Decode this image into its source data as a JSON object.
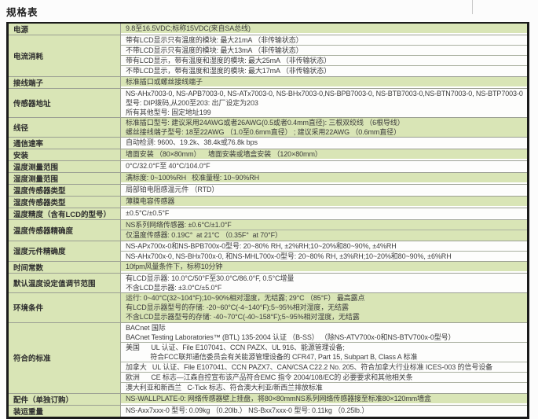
{
  "page": {
    "title": "规格表"
  },
  "colors": {
    "row_green": "#d9e5b6",
    "border_dark": "#1a1a1a",
    "border_gray": "#9b9f93"
  },
  "table": {
    "rows": [
      {
        "label": "电源",
        "shade": "green",
        "cells": [
          {
            "lines": [
              "9.8至16.5VDC;标称15VDC(来自SA总线)"
            ]
          }
        ]
      },
      {
        "label": "电流消耗",
        "shade": "white",
        "cells": [
          {
            "lines": [
              "带有LCD显示只有温度的模块: 最大21mA （非传输状态）"
            ]
          },
          {
            "lines": [
              "不带LCD显示只有温度的模块: 最大13mA （非传输状态）"
            ]
          },
          {
            "lines": [
              "带有LCD显示，带有温度和湿度的模块: 最大25mA （非传输状态）"
            ]
          },
          {
            "lines": [
              "不带LCD显示，带有温度和湿度的模块: 最大17mA （非传输状态）"
            ]
          }
        ]
      },
      {
        "label": "接线端子",
        "shade": "green",
        "cells": [
          {
            "lines": [
              "标准插口或螺丝接线端子"
            ]
          }
        ]
      },
      {
        "label": "传感器地址",
        "shade": "white",
        "cells": [
          {
            "lines": [
              "NS-AHx7003-0, NS-APB7003-0, NS-ATx7003-0, NS-BHx7003-0,NS-BPB7003-0, NS-BTB7003-0,NS-BTN7003-0, NS-BTP7003-0",
              "型号: DIP拨码,从200至203: 出厂设定为203",
              "所有其他型号: 固定地址199"
            ]
          }
        ]
      },
      {
        "label": "线径",
        "shade": "green",
        "cells": [
          {
            "lines": [
              "标准插口型号: 建议采用24AWG或者26AWG(0.5或者0.4mm直径): 三根双绞线 （6根导线）",
              "螺丝接线端子型号: 18至22AWG （1.0至0.6mm直径） ; 建议采用22AWG （0.6mm直径）"
            ]
          }
        ]
      },
      {
        "label": "通信速率",
        "shade": "white",
        "cells": [
          {
            "lines": [
              "自动检测: 9600、19.2k、38.4k或76.8k bps"
            ]
          }
        ]
      },
      {
        "label": "安装",
        "shade": "green",
        "cells": [
          {
            "lines": [
              "墙面安装 （80×80mm）    墙面安装或墙盒安装 （120×80mm）"
            ]
          }
        ]
      },
      {
        "label": "温度测量范围",
        "shade": "white",
        "cells": [
          {
            "lines": [
              "0°C/32.0°F至 40°C/104.0°F"
            ]
          }
        ]
      },
      {
        "label": "湿度测量范围",
        "shade": "green",
        "cells": [
          {
            "lines": [
              "满标度: 0~100%RH   校准量程: 10~90%RH"
            ]
          }
        ]
      },
      {
        "label": "温度传感器类型",
        "shade": "white",
        "cells": [
          {
            "lines": [
              "局部铂电阻感温元件 （RTD）"
            ]
          }
        ]
      },
      {
        "label": "湿度传感器类型",
        "shade": "green",
        "cells": [
          {
            "lines": [
              "薄膜电容传感器"
            ]
          }
        ]
      },
      {
        "label": "温度精度（含有LCD的型号）",
        "shade": "white",
        "cells": [
          {
            "lines": [
              "±0.5°C/±0.5°F"
            ]
          }
        ]
      },
      {
        "label": "温度传感器精确度",
        "shade": "green",
        "cells": [
          {
            "lines": [
              "NS系列网络传感器: ±0.6°C/±1.0°F"
            ]
          },
          {
            "lines": [
              "仅温度传感器: 0.19C°  at 21°C （0.35F°  at 70°F）"
            ]
          }
        ]
      },
      {
        "label": "湿度元件精确度",
        "shade": "white",
        "cells": [
          {
            "lines": [
              "NS-APx700x-0和NS-BPB700x-0型号: 20~80% RH, ±2%RH;10~20%和80~90%, ±4%RH"
            ]
          },
          {
            "lines": [
              "NS-AHx700x-0, NS-BHx700x-0, 和NS-MHL700x-0型号: 20~80% RH, ±3%RH;10~20%和80~90%, ±6%RH"
            ]
          }
        ]
      },
      {
        "label": "时间常数",
        "shade": "green",
        "cells": [
          {
            "lines": [
              "10fpm风量条件下，标称10分钟"
            ]
          }
        ]
      },
      {
        "label": "默认温度设定值调节范围",
        "shade": "white",
        "cells": [
          {
            "lines": [
              "有LCD显示器: 10.0°C/50°F至30.0°C/86.0°F, 0.5°C增量",
              "不含LCD显示器: ±3.0°C/±5.0°F"
            ]
          }
        ]
      },
      {
        "label": "环境条件",
        "shade": "green",
        "cells": [
          {
            "lines": [
              "运行: 0~40°C(32~104°F);10~90%相对湿度，无结露; 29°C （85°F） 最高露点",
              "有LCD显示器型号的存储: -20~60°C(-4~140°F);5~95%相对湿度，无结露",
              "不含LCD显示器型号的存储: -40~70°C(-40~158°F);5~95%相对湿度，无结露"
            ]
          }
        ]
      },
      {
        "label": "符合的标准",
        "shade": "white",
        "cells": [
          {
            "lines": [
              "BACnet 国际",
              "BACnet Testing Laboratories™ (BTL) 135-2004 认证 （B-SS） （除NS-ATV700x-0和NS-BTV700x-0型号）"
            ]
          },
          {
            "lines": [
              "美国      UL 认证、File E107041、CCN PAZX、UL 916、能源管理设备;",
              "             符合FCC联邦通信委员会有关能源管理设备的 CFR47, Part 15, Subpart B, Class A 标准"
            ]
          },
          {
            "lines": [
              "加拿大   UL 认证、File E107041、CCN PAZX7、CAN/CSA C22.2 No. 205、符合加拿大行业标准 ICES-003 的信号设备"
            ]
          },
          {
            "lines": [
              "欧洲      CE 标志—江森自控宣布该产品符合EMC 指令 2004/108/EC的 必要要求和其他相关条"
            ]
          },
          {
            "lines": [
              "澳大利亚和新西兰   C-Tick 标志、符合澳大利亚/新西兰排放标准"
            ]
          }
        ]
      },
      {
        "label": "配件（单独订购）",
        "shade": "green",
        "cells": [
          {
            "lines": [
              "NS-WALLPLATE-0: 网络传感器壁上挂盘，将80×80mmNS系列网络传感器接至标准80×120mm墙盒"
            ]
          }
        ]
      },
      {
        "label": "装运重量",
        "shade": "white",
        "cells": [
          {
            "lines": [
              "NS-Axx7xxx-0 型号: 0.09kg （0.20lb.） NS-Bxx7xxx-0 型号: 0.11kg （0.25lb.）"
            ]
          }
        ]
      }
    ]
  }
}
